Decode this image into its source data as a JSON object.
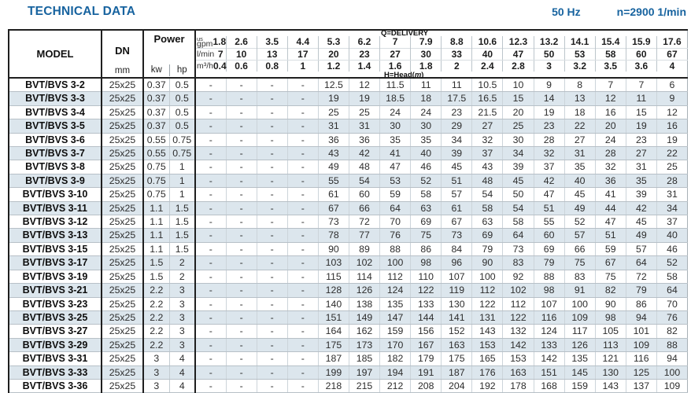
{
  "header": {
    "title": "TECHNICAL DATA",
    "frequency": "50 Hz",
    "speed": "n=2900 1/min"
  },
  "table": {
    "model_label": "MODEL",
    "dn_label": "DN",
    "dn_unit": "mm",
    "power_label": "Power",
    "kw_label": "kw",
    "hp_label": "hp",
    "delivery_label": "Q=DELIVERY",
    "head_label_pre": "H=Head(",
    "head_label_m": "m",
    "head_label_post": ")",
    "unit_us": "us",
    "unit_gpm": "gpm",
    "unit_lmin": "l/min",
    "unit_m3h": "m³/h",
    "gpm_values": [
      "1.8",
      "2.6",
      "3.5",
      "4.4",
      "5.3",
      "6.2",
      "7",
      "7.9",
      "8.8",
      "10.6",
      "12.3",
      "13.2",
      "14.1",
      "15.4",
      "15.9",
      "17.6"
    ],
    "lmin_values": [
      "7",
      "10",
      "13",
      "17",
      "20",
      "23",
      "27",
      "30",
      "33",
      "40",
      "47",
      "50",
      "53",
      "58",
      "60",
      "67"
    ],
    "m3h_values": [
      "0.4",
      "0.6",
      "0.8",
      "1",
      "1.2",
      "1.4",
      "1.6",
      "1.8",
      "2",
      "2.4",
      "2.8",
      "3",
      "3.2",
      "3.5",
      "3.6",
      "4"
    ],
    "rows": [
      {
        "model": "BVT/BVS 3-2",
        "dn": "25x25",
        "kw": "0.37",
        "hp": "0.5",
        "head": [
          "-",
          "-",
          "-",
          "-",
          "12.5",
          "12",
          "11.5",
          "11",
          "11",
          "10.5",
          "10",
          "9",
          "8",
          "7",
          "7",
          "6"
        ]
      },
      {
        "model": "BVT/BVS 3-3",
        "dn": "25x25",
        "kw": "0.37",
        "hp": "0.5",
        "head": [
          "-",
          "-",
          "-",
          "-",
          "19",
          "19",
          "18.5",
          "18",
          "17.5",
          "16.5",
          "15",
          "14",
          "13",
          "12",
          "11",
          "9"
        ]
      },
      {
        "model": "BVT/BVS 3-4",
        "dn": "25x25",
        "kw": "0.37",
        "hp": "0.5",
        "head": [
          "-",
          "-",
          "-",
          "-",
          "25",
          "25",
          "24",
          "24",
          "23",
          "21.5",
          "20",
          "19",
          "18",
          "16",
          "15",
          "12"
        ]
      },
      {
        "model": "BVT/BVS 3-5",
        "dn": "25x25",
        "kw": "0.37",
        "hp": "0.5",
        "head": [
          "-",
          "-",
          "-",
          "-",
          "31",
          "31",
          "30",
          "30",
          "29",
          "27",
          "25",
          "23",
          "22",
          "20",
          "19",
          "16"
        ]
      },
      {
        "model": "BVT/BVS 3-6",
        "dn": "25x25",
        "kw": "0.55",
        "hp": "0.75",
        "head": [
          "-",
          "-",
          "-",
          "-",
          "36",
          "36",
          "35",
          "35",
          "34",
          "32",
          "30",
          "28",
          "27",
          "24",
          "23",
          "19"
        ]
      },
      {
        "model": "BVT/BVS 3-7",
        "dn": "25x25",
        "kw": "0.55",
        "hp": "0.75",
        "head": [
          "-",
          "-",
          "-",
          "-",
          "43",
          "42",
          "41",
          "40",
          "39",
          "37",
          "34",
          "32",
          "31",
          "28",
          "27",
          "22"
        ]
      },
      {
        "model": "BVT/BVS 3-8",
        "dn": "25x25",
        "kw": "0.75",
        "hp": "1",
        "head": [
          "-",
          "-",
          "-",
          "-",
          "49",
          "48",
          "47",
          "46",
          "45",
          "43",
          "39",
          "37",
          "35",
          "32",
          "31",
          "25"
        ]
      },
      {
        "model": "BVT/BVS 3-9",
        "dn": "25x25",
        "kw": "0.75",
        "hp": "1",
        "head": [
          "-",
          "-",
          "-",
          "-",
          "55",
          "54",
          "53",
          "52",
          "51",
          "48",
          "45",
          "42",
          "40",
          "36",
          "35",
          "28"
        ]
      },
      {
        "model": "BVT/BVS 3-10",
        "dn": "25x25",
        "kw": "0.75",
        "hp": "1",
        "head": [
          "-",
          "-",
          "-",
          "-",
          "61",
          "60",
          "59",
          "58",
          "57",
          "54",
          "50",
          "47",
          "45",
          "41",
          "39",
          "31"
        ]
      },
      {
        "model": "BVT/BVS 3-11",
        "dn": "25x25",
        "kw": "1.1",
        "hp": "1.5",
        "head": [
          "-",
          "-",
          "-",
          "-",
          "67",
          "66",
          "64",
          "63",
          "61",
          "58",
          "54",
          "51",
          "49",
          "44",
          "42",
          "34"
        ]
      },
      {
        "model": "BVT/BVS 3-12",
        "dn": "25x25",
        "kw": "1.1",
        "hp": "1.5",
        "head": [
          "-",
          "-",
          "-",
          "-",
          "73",
          "72",
          "70",
          "69",
          "67",
          "63",
          "58",
          "55",
          "52",
          "47",
          "45",
          "37"
        ]
      },
      {
        "model": "BVT/BVS 3-13",
        "dn": "25x25",
        "kw": "1.1",
        "hp": "1.5",
        "head": [
          "-",
          "-",
          "-",
          "-",
          "78",
          "77",
          "76",
          "75",
          "73",
          "69",
          "64",
          "60",
          "57",
          "51",
          "49",
          "40"
        ]
      },
      {
        "model": "BVT/BVS 3-15",
        "dn": "25x25",
        "kw": "1.1",
        "hp": "1.5",
        "head": [
          "-",
          "-",
          "-",
          "-",
          "90",
          "89",
          "88",
          "86",
          "84",
          "79",
          "73",
          "69",
          "66",
          "59",
          "57",
          "46"
        ]
      },
      {
        "model": "BVT/BVS 3-17",
        "dn": "25x25",
        "kw": "1.5",
        "hp": "2",
        "head": [
          "-",
          "-",
          "-",
          "-",
          "103",
          "102",
          "100",
          "98",
          "96",
          "90",
          "83",
          "79",
          "75",
          "67",
          "64",
          "52"
        ]
      },
      {
        "model": "BVT/BVS 3-19",
        "dn": "25x25",
        "kw": "1.5",
        "hp": "2",
        "head": [
          "-",
          "-",
          "-",
          "-",
          "115",
          "114",
          "112",
          "110",
          "107",
          "100",
          "92",
          "88",
          "83",
          "75",
          "72",
          "58"
        ]
      },
      {
        "model": "BVT/BVS 3-21",
        "dn": "25x25",
        "kw": "2.2",
        "hp": "3",
        "head": [
          "-",
          "-",
          "-",
          "-",
          "128",
          "126",
          "124",
          "122",
          "119",
          "112",
          "102",
          "98",
          "91",
          "82",
          "79",
          "64"
        ]
      },
      {
        "model": "BVT/BVS 3-23",
        "dn": "25x25",
        "kw": "2.2",
        "hp": "3",
        "head": [
          "-",
          "-",
          "-",
          "-",
          "140",
          "138",
          "135",
          "133",
          "130",
          "122",
          "112",
          "107",
          "100",
          "90",
          "86",
          "70"
        ]
      },
      {
        "model": "BVT/BVS 3-25",
        "dn": "25x25",
        "kw": "2.2",
        "hp": "3",
        "head": [
          "-",
          "-",
          "-",
          "-",
          "151",
          "149",
          "147",
          "144",
          "141",
          "131",
          "122",
          "116",
          "109",
          "98",
          "94",
          "76"
        ]
      },
      {
        "model": "BVT/BVS 3-27",
        "dn": "25x25",
        "kw": "2.2",
        "hp": "3",
        "head": [
          "-",
          "-",
          "-",
          "-",
          "164",
          "162",
          "159",
          "156",
          "152",
          "143",
          "132",
          "124",
          "117",
          "105",
          "101",
          "82"
        ]
      },
      {
        "model": "BVT/BVS 3-29",
        "dn": "25x25",
        "kw": "2.2",
        "hp": "3",
        "head": [
          "-",
          "-",
          "-",
          "-",
          "175",
          "173",
          "170",
          "167",
          "163",
          "153",
          "142",
          "133",
          "126",
          "113",
          "109",
          "88"
        ]
      },
      {
        "model": "BVT/BVS 3-31",
        "dn": "25x25",
        "kw": "3",
        "hp": "4",
        "head": [
          "-",
          "-",
          "-",
          "-",
          "187",
          "185",
          "182",
          "179",
          "175",
          "165",
          "153",
          "142",
          "135",
          "121",
          "116",
          "94"
        ]
      },
      {
        "model": "BVT/BVS 3-33",
        "dn": "25x25",
        "kw": "3",
        "hp": "4",
        "head": [
          "-",
          "-",
          "-",
          "-",
          "199",
          "197",
          "194",
          "191",
          "187",
          "176",
          "163",
          "151",
          "145",
          "130",
          "125",
          "100"
        ]
      },
      {
        "model": "BVT/BVS 3-36",
        "dn": "25x25",
        "kw": "3",
        "hp": "4",
        "head": [
          "-",
          "-",
          "-",
          "-",
          "218",
          "215",
          "212",
          "208",
          "204",
          "192",
          "178",
          "168",
          "159",
          "143",
          "137",
          "109"
        ]
      }
    ]
  }
}
